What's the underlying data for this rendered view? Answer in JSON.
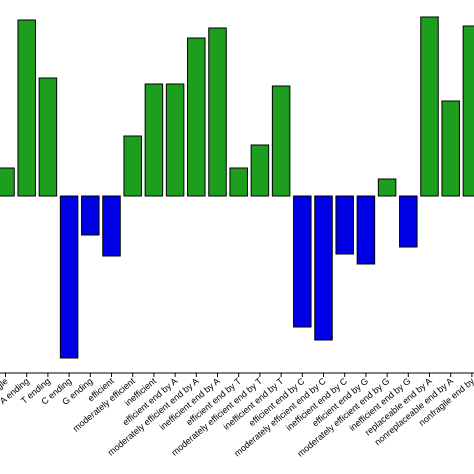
{
  "chart_data": {
    "type": "bar",
    "categories": [
      "gle",
      "A ending",
      "T ending",
      "C ending",
      "G ending",
      "efficient",
      "moderately efficient",
      "inefficient",
      "efficient end by A",
      "moderately efficient end by A",
      "inefficient end by A",
      "efficient end by T",
      "moderately efficient end by T",
      "inefficient end by T",
      "efficient end by C",
      "moderately efficient end by C",
      "inefficient end by C",
      "efficient end by G",
      "moderately efficient end by G",
      "inefficient end by G",
      "replaceable end by A",
      "nonreplaceable end by A",
      "nonfragile end by"
    ],
    "values": [
      28,
      176,
      118,
      -162,
      -39,
      -60,
      60,
      112,
      112,
      158,
      168,
      28,
      51,
      110,
      -131,
      -144,
      -58,
      -68,
      17,
      -51,
      179,
      95,
      170
    ],
    "positive_color": "#1e9e1e",
    "negative_color": "#0000e6",
    "ylim": [
      -177,
      196
    ]
  }
}
